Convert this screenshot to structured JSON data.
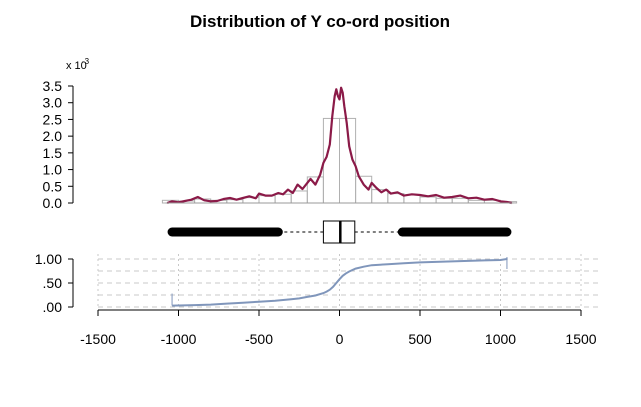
{
  "chart_data": {
    "title": "Distribution of Y co-ord position",
    "x_axis": {
      "ticks": [
        -1500,
        -1000,
        -500,
        0,
        500,
        1000,
        1500
      ],
      "tick_labels": [
        "-1500",
        "-1000",
        "-500",
        "0",
        "500",
        "1000",
        "1500"
      ],
      "range": [
        -1500,
        1500
      ]
    },
    "density_panel": {
      "type": "histogram+density",
      "scale_label": "x 10",
      "scale_exponent": "-3",
      "y_ticks": [
        0.0,
        0.5,
        1.0,
        1.5,
        2.0,
        2.5,
        3.0,
        3.5
      ],
      "y_tick_labels": [
        "0.0",
        "0.5",
        "1.0",
        "1.5",
        "2.0",
        "2.5",
        "3.0",
        "3.5"
      ],
      "y_range": [
        0,
        3.5
      ],
      "histogram_bins": [
        {
          "from": -1100,
          "to": -1000,
          "height": 0.08
        },
        {
          "from": -1000,
          "to": -900,
          "height": 0.06
        },
        {
          "from": -900,
          "to": -800,
          "height": 0.12
        },
        {
          "from": -800,
          "to": -700,
          "height": 0.08
        },
        {
          "from": -700,
          "to": -600,
          "height": 0.1
        },
        {
          "from": -600,
          "to": -500,
          "height": 0.16
        },
        {
          "from": -500,
          "to": -400,
          "height": 0.22
        },
        {
          "from": -400,
          "to": -300,
          "height": 0.26
        },
        {
          "from": -300,
          "to": -200,
          "height": 0.36
        },
        {
          "from": -200,
          "to": -100,
          "height": 0.78
        },
        {
          "from": -100,
          "to": 0,
          "height": 2.53
        },
        {
          "from": 0,
          "to": 100,
          "height": 2.53
        },
        {
          "from": 100,
          "to": 200,
          "height": 0.8
        },
        {
          "from": 200,
          "to": 300,
          "height": 0.4
        },
        {
          "from": 300,
          "to": 400,
          "height": 0.28
        },
        {
          "from": 400,
          "to": 500,
          "height": 0.24
        },
        {
          "from": 500,
          "to": 600,
          "height": 0.18
        },
        {
          "from": 600,
          "to": 700,
          "height": 0.14
        },
        {
          "from": 700,
          "to": 800,
          "height": 0.14
        },
        {
          "from": 800,
          "to": 900,
          "height": 0.08
        },
        {
          "from": 900,
          "to": 1000,
          "height": 0.08
        },
        {
          "from": 1000,
          "to": 1100,
          "height": 0.04
        }
      ],
      "density_curve": {
        "x": [
          -1070,
          -1040,
          -1000,
          -960,
          -920,
          -880,
          -840,
          -800,
          -760,
          -720,
          -680,
          -640,
          -600,
          -560,
          -520,
          -500,
          -460,
          -420,
          -380,
          -350,
          -320,
          -290,
          -260,
          -230,
          -200,
          -180,
          -150,
          -120,
          -100,
          -80,
          -60,
          -45,
          -30,
          -20,
          -10,
          0,
          10,
          20,
          30,
          45,
          60,
          80,
          100,
          120,
          150,
          180,
          200,
          230,
          260,
          290,
          320,
          360,
          400,
          450,
          500,
          550,
          600,
          650,
          700,
          750,
          800,
          850,
          900,
          950,
          1000,
          1040,
          1070
        ],
        "y": [
          0.0,
          0.05,
          0.02,
          0.06,
          0.1,
          0.18,
          0.08,
          0.05,
          0.06,
          0.12,
          0.15,
          0.1,
          0.15,
          0.2,
          0.14,
          0.28,
          0.22,
          0.22,
          0.3,
          0.26,
          0.4,
          0.3,
          0.55,
          0.42,
          0.6,
          0.72,
          0.55,
          0.85,
          1.2,
          1.38,
          1.75,
          2.6,
          3.2,
          3.4,
          3.2,
          3.1,
          3.45,
          3.3,
          2.9,
          2.4,
          1.7,
          1.3,
          1.1,
          0.8,
          0.55,
          0.4,
          0.6,
          0.45,
          0.32,
          0.4,
          0.28,
          0.32,
          0.22,
          0.26,
          0.24,
          0.2,
          0.24,
          0.16,
          0.18,
          0.22,
          0.14,
          0.16,
          0.1,
          0.12,
          0.05,
          0.03,
          0.0
        ],
        "color": "#8b1a48"
      },
      "histogram_color": "#b0b0b0"
    },
    "boxplot_panel": {
      "type": "boxplot",
      "q1": -100,
      "median": 5,
      "q3": 95,
      "whisker_low": -380,
      "whisker_high": 380,
      "outliers_low": [
        -1040,
        -380
      ],
      "outliers_high": [
        390,
        1040
      ]
    },
    "ecdf_panel": {
      "type": "line",
      "y_ticks": [
        0.0,
        0.5,
        1.0
      ],
      "y_tick_labels": [
        ".00",
        ".50",
        "1.00"
      ],
      "y_range": [
        0,
        1
      ],
      "curve": {
        "x": [
          -1040,
          -900,
          -800,
          -700,
          -600,
          -500,
          -400,
          -300,
          -250,
          -200,
          -150,
          -100,
          -80,
          -60,
          -40,
          -20,
          0,
          20,
          40,
          60,
          80,
          100,
          150,
          200,
          300,
          400,
          500,
          600,
          700,
          800,
          900,
          1000,
          1040
        ],
        "y": [
          0.03,
          0.04,
          0.05,
          0.07,
          0.09,
          0.11,
          0.13,
          0.16,
          0.18,
          0.21,
          0.24,
          0.29,
          0.32,
          0.36,
          0.42,
          0.5,
          0.58,
          0.65,
          0.7,
          0.74,
          0.77,
          0.8,
          0.84,
          0.87,
          0.89,
          0.91,
          0.93,
          0.94,
          0.95,
          0.96,
          0.97,
          0.98,
          1.0
        ],
        "color": "#8096bb"
      },
      "grid": true
    }
  }
}
